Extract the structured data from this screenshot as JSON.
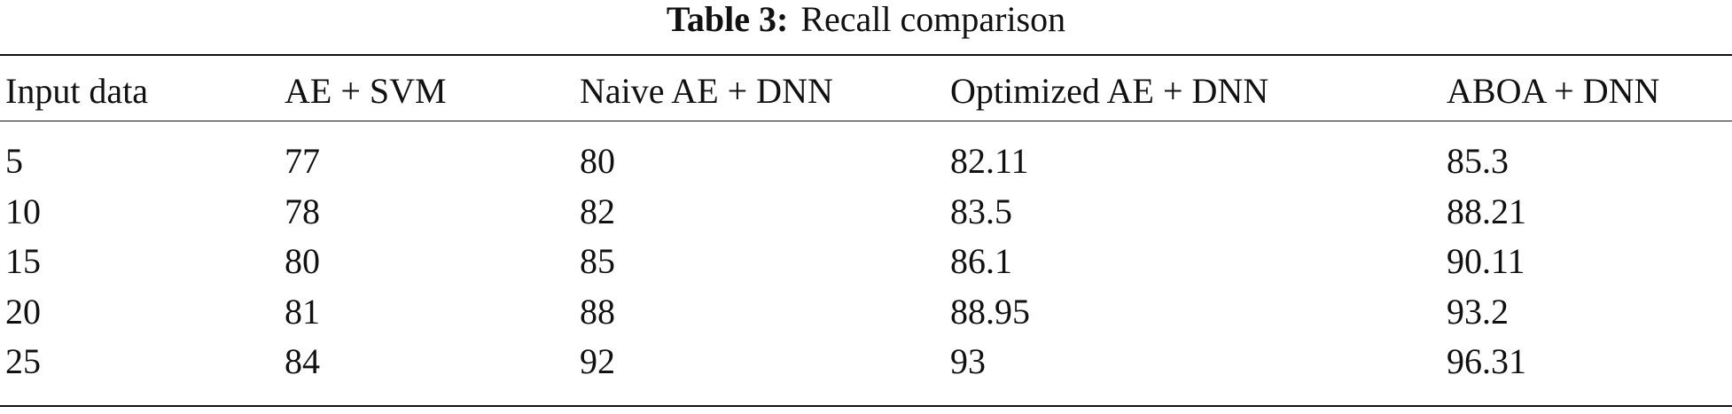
{
  "header": {
    "label": "Table 3:",
    "caption": "Recall comparison"
  },
  "table": {
    "columns": [
      "Input data",
      "AE + SVM",
      "Naive AE + DNN",
      "Optimized AE + DNN",
      "ABOA + DNN"
    ],
    "rows": [
      [
        5,
        77,
        80,
        82.11,
        85.3
      ],
      [
        10,
        78,
        82,
        83.5,
        88.21
      ],
      [
        15,
        80,
        85,
        86.1,
        90.11
      ],
      [
        20,
        81,
        88,
        88.95,
        93.2
      ],
      [
        25,
        84,
        92,
        93,
        96.31
      ]
    ]
  }
}
